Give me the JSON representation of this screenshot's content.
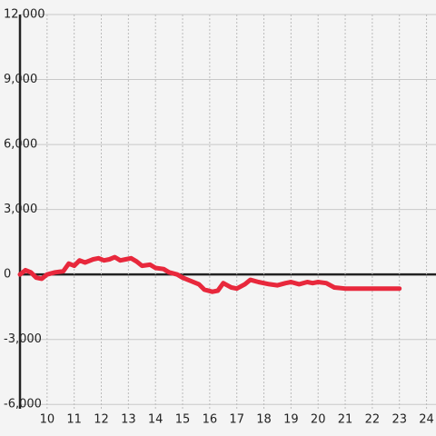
{
  "chart_data": {
    "type": "line",
    "color": "#e8283c",
    "grid": true,
    "xlim": [
      9,
      24.35
    ],
    "xticks": [
      10,
      11,
      12,
      13,
      14,
      15,
      16,
      17,
      18,
      19,
      20,
      21,
      22,
      23,
      24
    ],
    "ylim": [
      -6200,
      12000
    ],
    "yticks": [
      {
        "value": 12000,
        "label": "12,000"
      },
      {
        "value": 9000,
        "label": "9,000"
      },
      {
        "value": 6000,
        "label": "6,000"
      },
      {
        "value": 3000,
        "label": "3,000"
      },
      0,
      {
        "value": -3000,
        "label": "-3,000"
      },
      {
        "value": -6000,
        "label": "-6,000"
      }
    ],
    "x": [
      9.0,
      9.2,
      9.4,
      9.6,
      9.8,
      10.0,
      10.3,
      10.6,
      10.8,
      11.0,
      11.2,
      11.4,
      11.7,
      11.9,
      12.1,
      12.3,
      12.5,
      12.7,
      12.9,
      13.1,
      13.3,
      13.5,
      13.8,
      14.0,
      14.3,
      14.5,
      14.8,
      15.0,
      15.3,
      15.6,
      15.8,
      16.1,
      16.3,
      16.5,
      16.8,
      17.0,
      17.3,
      17.5,
      17.8,
      18.2,
      18.5,
      18.8,
      19.0,
      19.3,
      19.6,
      19.8,
      20.0,
      20.3,
      20.6,
      21.0,
      22.0,
      23.0
    ],
    "values": [
      0,
      200,
      100,
      -150,
      -200,
      0,
      100,
      150,
      500,
      400,
      650,
      550,
      700,
      750,
      650,
      700,
      800,
      650,
      700,
      750,
      600,
      400,
      450,
      300,
      250,
      100,
      0,
      -150,
      -300,
      -450,
      -700,
      -800,
      -750,
      -400,
      -600,
      -650,
      -450,
      -250,
      -350,
      -450,
      -500,
      -400,
      -350,
      -450,
      -350,
      -400,
      -350,
      -400,
      -600,
      -650,
      -650,
      -650
    ]
  }
}
